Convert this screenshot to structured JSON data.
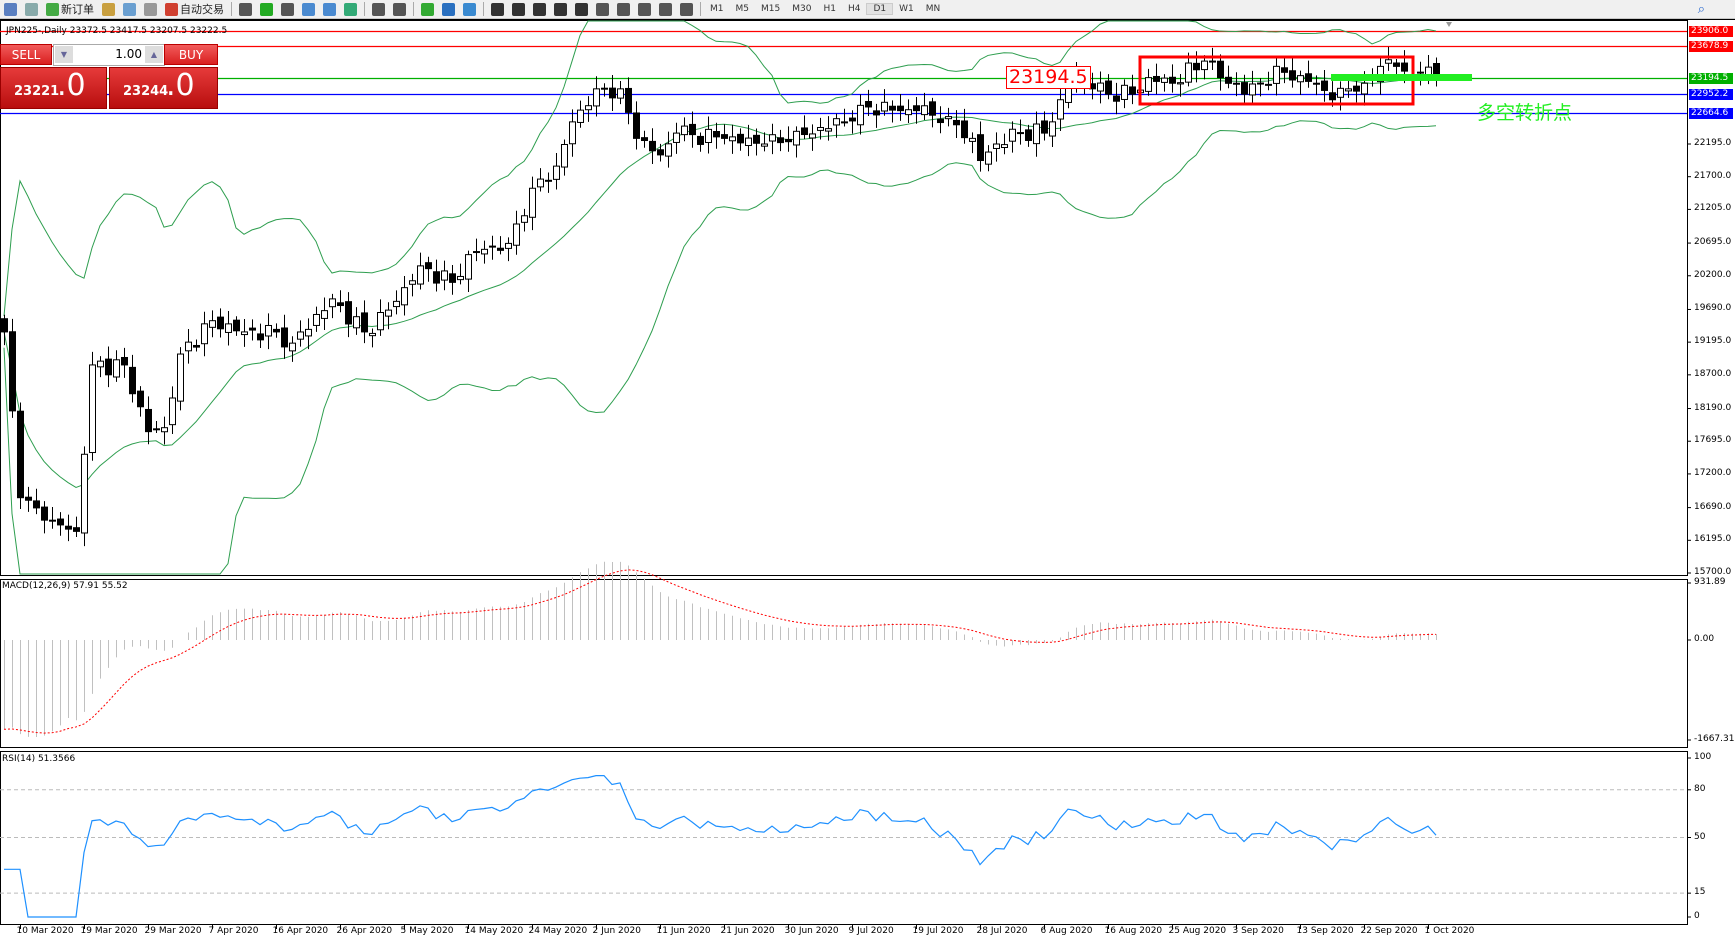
{
  "toolbar": {
    "new_order": "新订单",
    "auto_trade": "自动交易",
    "timeframes": [
      "M1",
      "M5",
      "M15",
      "M30",
      "H1",
      "H4",
      "D1",
      "W1",
      "MN"
    ],
    "active_timeframe": "D1",
    "icons": [
      "list-icon",
      "zoom-window-icon",
      "new-order-icon",
      "metaeditor-icon",
      "terminal-icon",
      "signal-icon",
      "auto-trade-icon",
      "bar-chart-icon",
      "candle-chart-icon",
      "line-chart-icon",
      "zoom-in-icon",
      "zoom-out-icon",
      "tile-icon",
      "autoscroll-icon",
      "chart-shift-icon",
      "indicators-icon",
      "periods-icon",
      "templates-icon",
      "cursor-icon",
      "crosshair-icon",
      "vertical-line-icon",
      "horizontal-line-icon",
      "trend-line-icon",
      "equidistant-channel-icon",
      "fibonacci-icon",
      "text-icon",
      "label-icon",
      "arrows-icon"
    ]
  },
  "chart": {
    "title": "JPN225-,Daily  23372.5 23417.5 23207.5 23222.5",
    "price_axis": [
      "22195.0",
      "21700.0",
      "21205.0",
      "20695.0",
      "20200.0",
      "19690.0",
      "19195.0",
      "18700.0",
      "18190.0",
      "17695.0",
      "17200.0",
      "16690.0",
      "16195.0",
      "15700.0"
    ],
    "hlines": [
      {
        "price": "23906.0",
        "color": "#ff0000"
      },
      {
        "price": "23678.9",
        "color": "#ff0000"
      },
      {
        "price": "23194.5",
        "color": "#00b000"
      },
      {
        "price": "22952.2",
        "color": "#0000ff"
      },
      {
        "price": "22664.6",
        "color": "#0000ff"
      }
    ],
    "price_label": "23194.5",
    "annotation": "多空转折点",
    "dates": [
      "10 Mar 2020",
      "19 Mar 2020",
      "29 Mar 2020",
      "7 Apr 2020",
      "16 Apr 2020",
      "26 Apr 2020",
      "5 May 2020",
      "14 May 2020",
      "24 May 2020",
      "2 Jun 2020",
      "11 Jun 2020",
      "21 Jun 2020",
      "30 Jun 2020",
      "9 Jul 2020",
      "19 Jul 2020",
      "28 Jul 2020",
      "6 Aug 2020",
      "16 Aug 2020",
      "25 Aug 2020",
      "3 Sep 2020",
      "13 Sep 2020",
      "22 Sep 2020",
      "1 Oct 2020"
    ],
    "close_path": [
      [
        0,
        19350
      ],
      [
        2,
        16840
      ],
      [
        5,
        16500
      ],
      [
        9,
        16330
      ],
      [
        11,
        18850
      ],
      [
        15,
        18850
      ],
      [
        18,
        17840
      ],
      [
        20,
        17900
      ],
      [
        22,
        19015
      ],
      [
        26,
        19520
      ],
      [
        30,
        19350
      ],
      [
        34,
        19350
      ],
      [
        36,
        19180
      ],
      [
        41,
        19850
      ],
      [
        45,
        19350
      ],
      [
        48,
        19680
      ],
      [
        50,
        20020
      ],
      [
        52,
        20350
      ],
      [
        56,
        20100
      ],
      [
        58,
        20520
      ],
      [
        60,
        20600
      ],
      [
        63,
        20690
      ],
      [
        66,
        21525
      ],
      [
        69,
        21860
      ],
      [
        71,
        22530
      ],
      [
        74,
        23030
      ],
      [
        77,
        23030
      ],
      [
        79,
        22280
      ],
      [
        82,
        22030
      ],
      [
        84,
        22360
      ],
      [
        90,
        22280
      ],
      [
        95,
        22195
      ],
      [
        98,
        22230
      ],
      [
        102,
        22445
      ],
      [
        105,
        22530
      ],
      [
        107,
        22780
      ],
      [
        112,
        22700
      ],
      [
        114,
        22700
      ],
      [
        118,
        22610
      ],
      [
        121,
        22280
      ],
      [
        122,
        21945
      ],
      [
        124,
        22195
      ],
      [
        127,
        22360
      ],
      [
        130,
        22360
      ],
      [
        132,
        22865
      ],
      [
        133,
        23200
      ],
      [
        136,
        23030
      ],
      [
        138,
        22950
      ],
      [
        141,
        22950
      ],
      [
        143,
        23200
      ],
      [
        146,
        23115
      ],
      [
        150,
        23450
      ],
      [
        152,
        23200
      ],
      [
        154,
        23115
      ],
      [
        155,
        22950
      ],
      [
        157,
        23115
      ],
      [
        160,
        23280
      ],
      [
        162,
        23230
      ],
      [
        164,
        23115
      ],
      [
        166,
        22865
      ],
      [
        168,
        23030
      ],
      [
        170,
        23115
      ],
      [
        172,
        23370
      ],
      [
        174,
        23370
      ],
      [
        176,
        23230
      ],
      [
        177,
        23280
      ],
      [
        179,
        23222.5
      ]
    ]
  },
  "trade": {
    "sell": "SELL",
    "buy": "BUY",
    "lot": "1.00",
    "sell_price_small": "23221",
    "sell_price_big": ".0",
    "buy_price_small": "23244",
    "buy_price_big": ".0"
  },
  "macd": {
    "label": "MACD(12,26,9) 57.91 55.52",
    "axis": [
      "931.89",
      "0.00",
      "-1667.31"
    ],
    "max": 931.89,
    "min": -1667.31
  },
  "rsi": {
    "label": "RSI(14) 51.3566",
    "axis": [
      "100",
      "80",
      "50",
      "15",
      "0"
    ],
    "levels": [
      80,
      50,
      15
    ]
  },
  "colors": {
    "bollinger": "#2e9e4f",
    "macd_hist": "#c0c0c0",
    "macd_signal": "#ff0000",
    "rsi": "#1e90ff"
  }
}
